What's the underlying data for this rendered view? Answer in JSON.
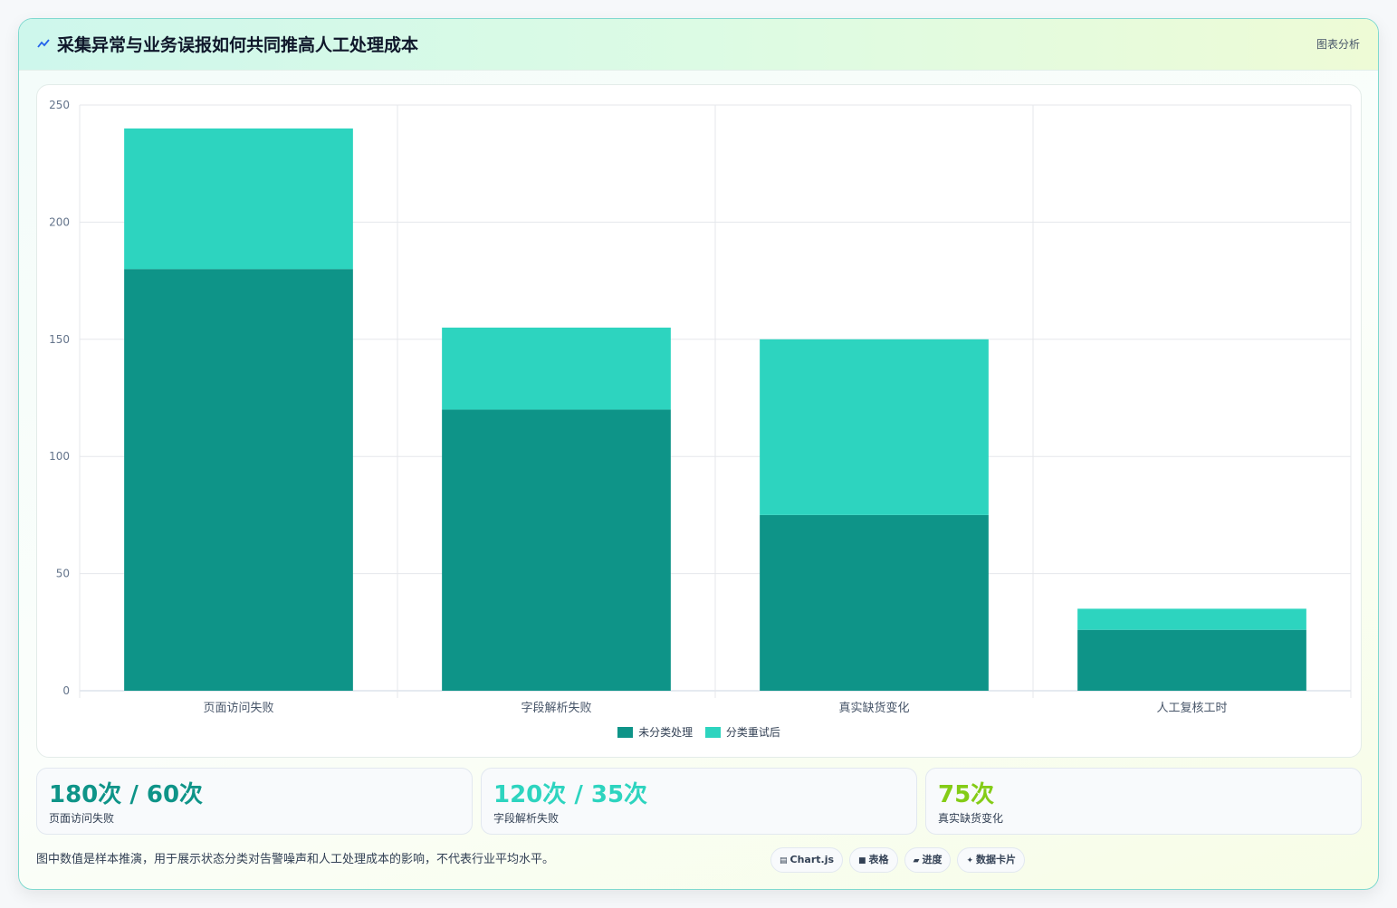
{
  "header": {
    "title": "采集异常与业务误报如何共同推高人工处理成本",
    "tag": "图表分析",
    "logo_icon": "line-chart-icon"
  },
  "colors": {
    "series_primary": "#0e9488",
    "series_secondary": "#2dd4bf",
    "stat_1": "#0e9488",
    "stat_2": "#2dd4bf",
    "stat_3": "#84cc16"
  },
  "chart_data": {
    "type": "bar",
    "stacked": true,
    "categories": [
      "页面访问失败",
      "字段解析失败",
      "真实缺货变化",
      "人工复核工时"
    ],
    "series": [
      {
        "name": "未分类处理",
        "values": [
          180,
          120,
          75,
          26
        ]
      },
      {
        "name": "分类重试后",
        "values": [
          60,
          35,
          75,
          9
        ]
      }
    ],
    "ylim": [
      0,
      250
    ],
    "yticks": [
      0,
      50,
      100,
      150,
      200,
      250
    ],
    "grid": true,
    "legend": "bottom"
  },
  "stats": [
    {
      "value": "180次 / 60次",
      "label": "页面访问失败"
    },
    {
      "value": "120次 / 35次",
      "label": "字段解析失败"
    },
    {
      "value": "75次",
      "label": "真实缺货变化"
    }
  ],
  "footnote": "图中数值是样本推演，用于展示状态分类对告警噪声和人工处理成本的影响，不代表行业平均水平。",
  "chips": [
    {
      "icon": "chart-icon",
      "glyph": "▤",
      "label": "Chart.js"
    },
    {
      "icon": "table-icon",
      "glyph": "■",
      "label": "表格"
    },
    {
      "icon": "progress-icon",
      "glyph": "▰",
      "label": "进度"
    },
    {
      "icon": "sparkle-icon",
      "glyph": "✦",
      "label": "数据卡片"
    }
  ]
}
